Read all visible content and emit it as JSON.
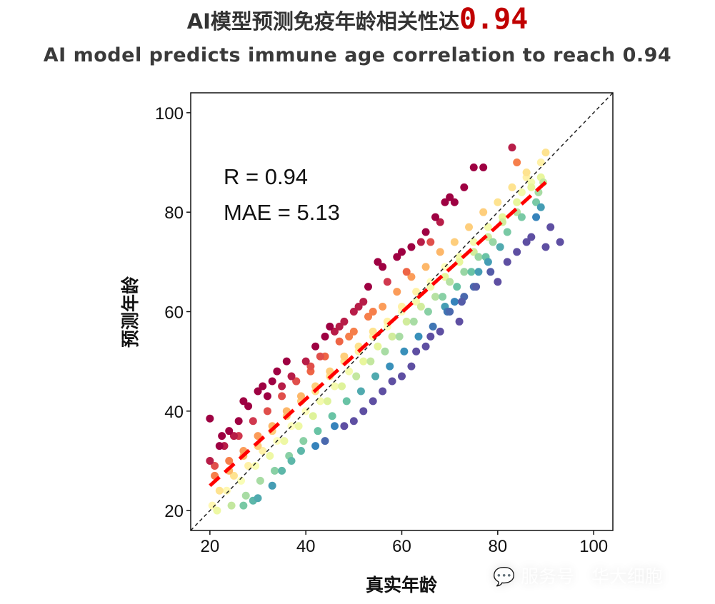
{
  "header": {
    "title_prefix": "AI模型预测免疫年龄相关性达",
    "title_highlight": "0.94",
    "subtitle": "AI model predicts immune age correlation to reach 0.94"
  },
  "watermark": "服务号 · 华大细胞",
  "colors": {
    "highlight": "#c00000",
    "fit_line": "#ff0000",
    "identity_line": "#222222"
  },
  "chart_data": {
    "type": "scatter",
    "xlabel": "真实年龄",
    "ylabel": "预测年龄",
    "xlim": [
      16,
      104
    ],
    "ylim": [
      16,
      104
    ],
    "xticks": [
      20,
      40,
      60,
      80,
      100
    ],
    "yticks": [
      20,
      40,
      60,
      80,
      100
    ],
    "grid": false,
    "annotations": [
      "R = 0.94",
      "MAE = 5.13"
    ],
    "r": 0.94,
    "mae": 5.13,
    "color_by": "prediction residual (Spectral palette: red = over-predicted, purple = under-predicted)",
    "fit_line": {
      "x": [
        20,
        90
      ],
      "y": [
        25,
        86
      ]
    },
    "identity_line": {
      "x": [
        16,
        104
      ],
      "y": [
        16,
        104
      ]
    },
    "points": [
      [
        20,
        30
      ],
      [
        21,
        27
      ],
      [
        22,
        24
      ],
      [
        20.5,
        21
      ],
      [
        21.5,
        20
      ],
      [
        23,
        33
      ],
      [
        24,
        30
      ],
      [
        25,
        27
      ],
      [
        23.5,
        24
      ],
      [
        24.5,
        21
      ],
      [
        26,
        35
      ],
      [
        27,
        32
      ],
      [
        28,
        29
      ],
      [
        26.5,
        26
      ],
      [
        27.5,
        23
      ],
      [
        29,
        38
      ],
      [
        30,
        35
      ],
      [
        31,
        32
      ],
      [
        29.5,
        29
      ],
      [
        30.5,
        26
      ],
      [
        32,
        40
      ],
      [
        33,
        37
      ],
      [
        34,
        34
      ],
      [
        32.5,
        31
      ],
      [
        33.5,
        28
      ],
      [
        35,
        43
      ],
      [
        36,
        40
      ],
      [
        37,
        37
      ],
      [
        35.5,
        34
      ],
      [
        36.5,
        31
      ],
      [
        38,
        46
      ],
      [
        39,
        43
      ],
      [
        40,
        40
      ],
      [
        38.5,
        37
      ],
      [
        39.5,
        34
      ],
      [
        41,
        48
      ],
      [
        42,
        45
      ],
      [
        43,
        42
      ],
      [
        41.5,
        39
      ],
      [
        42.5,
        36
      ],
      [
        44,
        51
      ],
      [
        45,
        48
      ],
      [
        46,
        45
      ],
      [
        44.5,
        42
      ],
      [
        45.5,
        39
      ],
      [
        47,
        54
      ],
      [
        48,
        51
      ],
      [
        49,
        48
      ],
      [
        47.5,
        45
      ],
      [
        48.5,
        42
      ],
      [
        50,
        56
      ],
      [
        51,
        53
      ],
      [
        52,
        50
      ],
      [
        50.5,
        47
      ],
      [
        51.5,
        44
      ],
      [
        53,
        59
      ],
      [
        54,
        56
      ],
      [
        55,
        53
      ],
      [
        53.5,
        50
      ],
      [
        54.5,
        47
      ],
      [
        56,
        61
      ],
      [
        57,
        58
      ],
      [
        58,
        55
      ],
      [
        56.5,
        52
      ],
      [
        57.5,
        49
      ],
      [
        59,
        64
      ],
      [
        60,
        61
      ],
      [
        61,
        58
      ],
      [
        59.5,
        55
      ],
      [
        60.5,
        52
      ],
      [
        62,
        67
      ],
      [
        63,
        64
      ],
      [
        64,
        61
      ],
      [
        62.5,
        58
      ],
      [
        63.5,
        55
      ],
      [
        65,
        69
      ],
      [
        66,
        66
      ],
      [
        67,
        63
      ],
      [
        65.5,
        60
      ],
      [
        66.5,
        57
      ],
      [
        68,
        72
      ],
      [
        69,
        69
      ],
      [
        70,
        66
      ],
      [
        68.5,
        63
      ],
      [
        69.5,
        60
      ],
      [
        71,
        74
      ],
      [
        72,
        71
      ],
      [
        73,
        68
      ],
      [
        71.5,
        65
      ],
      [
        72.5,
        62
      ],
      [
        74,
        77
      ],
      [
        75,
        74
      ],
      [
        76,
        71
      ],
      [
        74.5,
        68
      ],
      [
        75.5,
        65
      ],
      [
        77,
        80
      ],
      [
        78,
        77
      ],
      [
        79,
        74
      ],
      [
        77.5,
        71
      ],
      [
        78.5,
        68
      ],
      [
        80,
        82
      ],
      [
        81,
        79
      ],
      [
        82,
        76
      ],
      [
        80.5,
        73
      ],
      [
        83,
        85
      ],
      [
        84,
        82
      ],
      [
        85,
        79
      ],
      [
        86,
        87
      ],
      [
        87,
        85
      ],
      [
        88,
        82
      ],
      [
        89,
        90
      ],
      [
        89.5,
        86
      ],
      [
        88.5,
        84
      ],
      [
        21,
        29
      ],
      [
        24,
        28
      ],
      [
        27,
        31
      ],
      [
        30,
        33
      ],
      [
        33,
        36
      ],
      [
        36,
        39
      ],
      [
        39,
        42
      ],
      [
        42,
        44
      ],
      [
        45,
        47
      ],
      [
        48,
        50
      ],
      [
        51,
        52
      ],
      [
        54,
        55
      ],
      [
        57,
        57
      ],
      [
        60,
        60
      ],
      [
        63,
        62
      ],
      [
        66,
        65
      ],
      [
        69,
        67
      ],
      [
        72,
        70
      ],
      [
        75,
        72
      ],
      [
        78,
        75
      ],
      [
        81,
        78
      ],
      [
        84,
        80
      ],
      [
        20,
        38.5
      ],
      [
        22,
        33
      ],
      [
        22.5,
        35
      ],
      [
        24,
        36
      ],
      [
        25,
        35
      ],
      [
        26,
        38
      ],
      [
        27,
        42
      ],
      [
        28,
        41
      ],
      [
        30,
        44
      ],
      [
        31,
        45
      ],
      [
        32,
        43
      ],
      [
        33,
        46
      ],
      [
        34,
        48
      ],
      [
        35,
        45
      ],
      [
        36,
        50
      ],
      [
        37,
        47
      ],
      [
        38,
        46
      ],
      [
        40,
        50
      ],
      [
        41,
        49
      ],
      [
        42,
        53
      ],
      [
        43,
        51
      ],
      [
        44,
        55
      ],
      [
        45,
        57
      ],
      [
        46,
        56
      ],
      [
        47,
        57
      ],
      [
        48,
        58
      ],
      [
        49,
        55
      ],
      [
        50,
        60
      ],
      [
        51,
        61
      ],
      [
        52,
        62
      ],
      [
        53,
        65
      ],
      [
        54,
        60
      ],
      [
        55,
        70
      ],
      [
        56,
        69
      ],
      [
        57,
        66
      ],
      [
        59,
        71
      ],
      [
        60,
        72
      ],
      [
        61,
        68
      ],
      [
        62,
        73
      ],
      [
        64,
        74
      ],
      [
        65,
        76
      ],
      [
        66,
        74
      ],
      [
        67,
        79
      ],
      [
        68,
        78
      ],
      [
        69,
        82
      ],
      [
        70,
        83
      ],
      [
        71,
        82
      ],
      [
        73,
        85
      ],
      [
        75,
        89
      ],
      [
        77,
        89
      ],
      [
        83,
        93
      ],
      [
        27,
        21
      ],
      [
        29,
        22
      ],
      [
        30,
        22.5
      ],
      [
        33,
        25
      ],
      [
        35,
        28
      ],
      [
        37,
        30
      ],
      [
        39,
        32
      ],
      [
        42,
        33
      ],
      [
        44,
        34
      ],
      [
        46,
        37
      ],
      [
        48,
        37
      ],
      [
        50,
        38
      ],
      [
        52,
        40
      ],
      [
        54,
        42
      ],
      [
        56,
        44
      ],
      [
        58,
        46
      ],
      [
        60,
        47
      ],
      [
        62,
        49
      ],
      [
        63,
        52
      ],
      [
        65,
        53
      ],
      [
        66,
        55
      ],
      [
        68,
        56
      ],
      [
        69,
        61
      ],
      [
        70,
        60
      ],
      [
        71,
        62
      ],
      [
        72,
        58
      ],
      [
        73,
        63
      ],
      [
        75,
        65
      ],
      [
        76,
        68
      ],
      [
        78,
        70
      ],
      [
        80,
        66
      ],
      [
        82,
        70
      ],
      [
        84,
        72
      ],
      [
        86,
        74
      ],
      [
        87,
        75
      ],
      [
        90,
        73
      ],
      [
        91,
        77
      ],
      [
        93,
        74
      ],
      [
        88,
        79
      ],
      [
        89,
        81
      ],
      [
        84,
        90
      ],
      [
        86,
        88
      ],
      [
        87,
        86
      ],
      [
        90,
        92
      ],
      [
        85,
        84
      ],
      [
        89,
        87
      ]
    ]
  }
}
